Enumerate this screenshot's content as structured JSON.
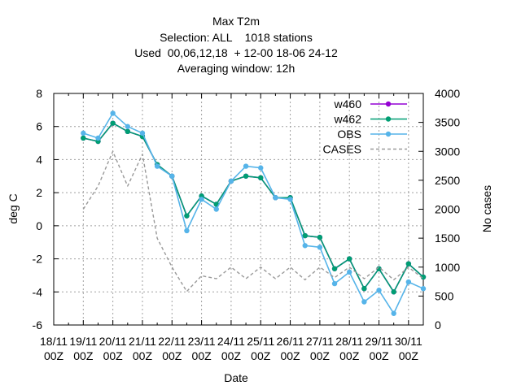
{
  "chart_data": {
    "type": "line",
    "title_lines": [
      "Max T2m",
      "Selection: ALL    1018 stations",
      "Used  00,06,12,18  + 12-00 18-06 24-12",
      "Averaging window: 12h"
    ],
    "xlabel": "Date",
    "ylabel": "deg C",
    "y2label": "No cases",
    "ylim": [
      -6,
      8
    ],
    "y2lim": [
      0,
      4000
    ],
    "yticks": [
      "8",
      "6",
      "4",
      "2",
      "0",
      "-2",
      "-4",
      "-6"
    ],
    "y2ticks": [
      "4000",
      "3500",
      "3000",
      "2500",
      "2000",
      "1500",
      "1000",
      "500",
      "0"
    ],
    "xticks": [
      {
        "top": "18/11",
        "bottom": "00Z"
      },
      {
        "top": "19/11",
        "bottom": "00Z"
      },
      {
        "top": "20/11",
        "bottom": "00Z"
      },
      {
        "top": "21/11",
        "bottom": "00Z"
      },
      {
        "top": "22/11",
        "bottom": "00Z"
      },
      {
        "top": "23/11",
        "bottom": "00Z"
      },
      {
        "top": "24/11",
        "bottom": "00Z"
      },
      {
        "top": "25/11",
        "bottom": "00Z"
      },
      {
        "top": "26/11",
        "bottom": "00Z"
      },
      {
        "top": "27/11",
        "bottom": "00Z"
      },
      {
        "top": "28/11",
        "bottom": "00Z"
      },
      {
        "top": "29/11",
        "bottom": "00Z"
      },
      {
        "top": "30/11",
        "bottom": "00Z"
      }
    ],
    "grid": true,
    "legend_position": "top-right",
    "x_days": [
      0.5,
      0.75,
      1.0,
      1.25,
      1.5,
      1.75,
      2.0,
      2.25,
      2.5,
      2.75,
      3.0,
      3.25,
      3.5,
      3.75,
      4.0,
      4.25,
      4.5,
      4.75,
      5.0,
      5.25,
      5.5,
      5.75,
      6.0,
      6.25
    ],
    "series": [
      {
        "name": "w460",
        "color": "#9400d3",
        "values": [
          5.3,
          5.1,
          6.2,
          5.7,
          5.4,
          3.7,
          3.0,
          0.6,
          1.8,
          1.3,
          2.7,
          3.0,
          2.9,
          1.7,
          1.7,
          -0.6,
          -0.7,
          -2.6,
          -2.0,
          -3.8,
          -2.6,
          -4.0,
          -2.3,
          -3.1
        ]
      },
      {
        "name": "w462",
        "color": "#009e73",
        "values": [
          5.3,
          5.1,
          6.2,
          5.7,
          5.4,
          3.7,
          3.0,
          0.6,
          1.8,
          1.3,
          2.7,
          3.0,
          2.9,
          1.7,
          1.7,
          -0.6,
          -0.7,
          -2.6,
          -2.0,
          -3.8,
          -2.6,
          -4.0,
          -2.3,
          -3.1
        ]
      },
      {
        "name": "OBS",
        "color": "#56b4e9",
        "values": [
          5.6,
          5.3,
          6.8,
          6.0,
          5.6,
          3.6,
          3.0,
          -0.3,
          1.6,
          1.0,
          2.7,
          3.6,
          3.5,
          1.7,
          1.6,
          -1.2,
          -1.3,
          -3.5,
          -2.8,
          -4.6,
          -3.9,
          -5.3,
          -3.4,
          -3.8
        ]
      },
      {
        "name": "CASES",
        "color": "#999999",
        "dashed": true,
        "axis": "y2",
        "values": [
          2000,
          2400,
          3000,
          2400,
          2950,
          1500,
          1000,
          580,
          850,
          800,
          1000,
          800,
          1000,
          800,
          1000,
          780,
          1000,
          820,
          1000,
          800,
          1000,
          780,
          1000,
          800
        ]
      }
    ]
  }
}
